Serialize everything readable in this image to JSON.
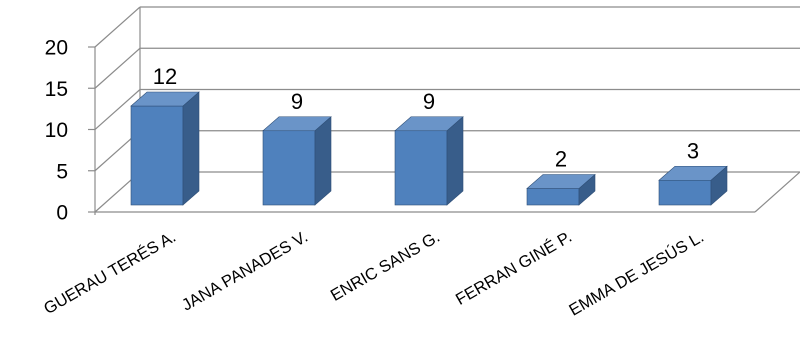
{
  "chart_data": {
    "type": "bar",
    "title": "",
    "xlabel": "",
    "ylabel": "",
    "categories": [
      "GUERAU TERÉS A.",
      "JANA PANADES V.",
      "ENRIC SANS G.",
      "FERRAN GINÉ P.",
      "EMMA DE JESÚS L."
    ],
    "values": [
      12,
      9,
      9,
      2,
      3
    ],
    "ylim": [
      0,
      20
    ],
    "yticks": [
      0,
      5,
      10,
      15,
      20
    ],
    "grid": true,
    "legend": "none",
    "three_d": true,
    "colors": {
      "bar_front": "#4f81bd",
      "bar_side": "#385d8a",
      "bar_top": "#6a94c8",
      "bar_edge": "#2f4f77",
      "grid": "#8c8c8c"
    }
  }
}
